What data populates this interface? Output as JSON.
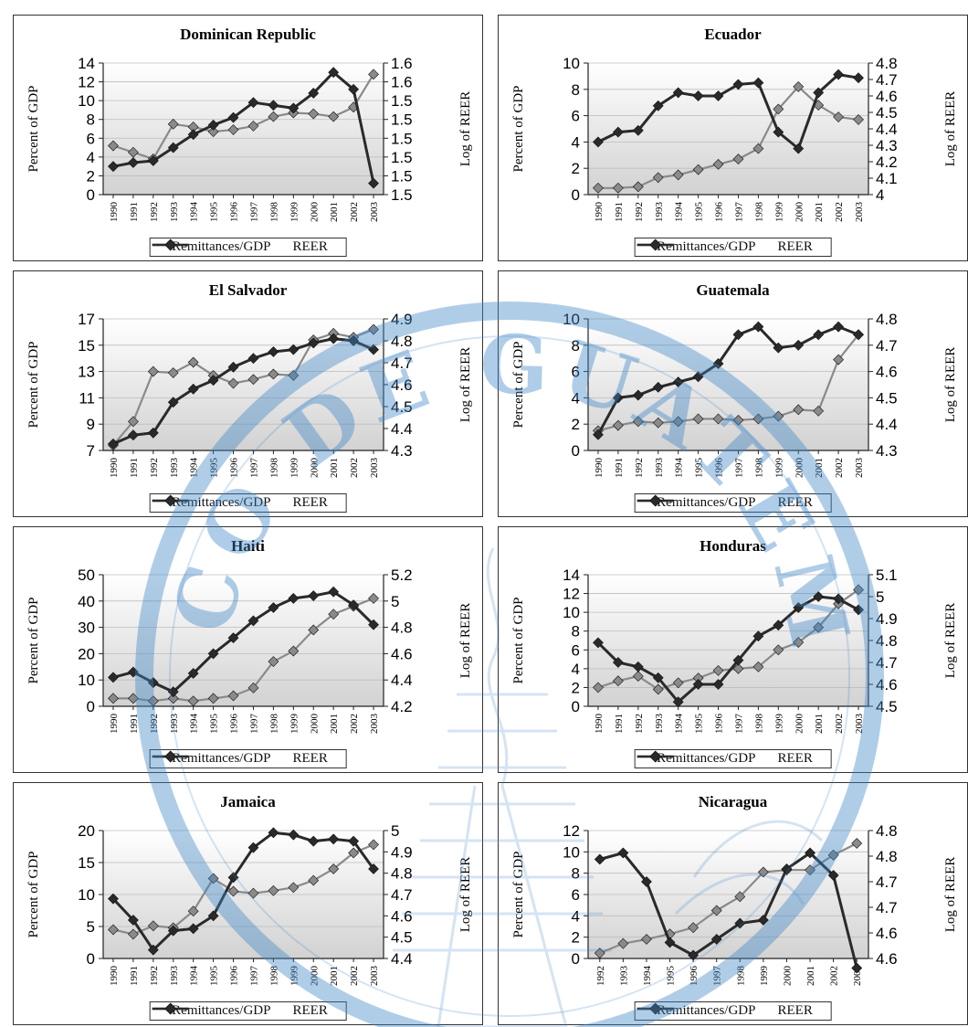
{
  "colors": {
    "remit": "#8a8a8a",
    "reer": "#2a2a2a",
    "watermark": "#3f86c6"
  },
  "watermark": {
    "text": "BANCO DE GUATEMALA"
  },
  "chart_data": [
    {
      "type": "line",
      "title": "Dominican Republic",
      "ylabel": "Percent of GDP",
      "y2label": "Log of REER",
      "x": [
        "1990",
        "1991",
        "1992",
        "1993",
        "1994",
        "1995",
        "1996",
        "1997",
        "1998",
        "1999",
        "2000",
        "2001",
        "2002",
        "2003"
      ],
      "ylim": [
        0,
        14
      ],
      "yticks": [
        "0",
        "2",
        "4",
        "6",
        "8",
        "10",
        "12",
        "14"
      ],
      "y2lim": [
        1.5,
        1.6
      ],
      "y2ticks": [
        "1.5",
        "1.5",
        "1.5",
        "1.5",
        "1.5",
        "1.5",
        "1.6",
        "1.6"
      ],
      "series": [
        {
          "name": "Remittances/GDP",
          "axis": "left",
          "values": [
            5.2,
            4.5,
            3.8,
            7.5,
            7.2,
            6.7,
            6.9,
            7.3,
            8.3,
            8.7,
            8.6,
            8.3,
            9.3,
            12.8
          ]
        },
        {
          "name": "REER",
          "axis": "right",
          "values": [
            1.5214,
            1.5243,
            1.5257,
            1.5357,
            1.5457,
            1.5529,
            1.5586,
            1.57,
            1.5679,
            1.5657,
            1.5771,
            1.5929,
            1.58,
            1.5086
          ]
        }
      ]
    },
    {
      "type": "line",
      "title": "Ecuador",
      "ylabel": "Percent of GDP",
      "y2label": "Log of REER",
      "x": [
        "1990",
        "1991",
        "1992",
        "1993",
        "1994",
        "1995",
        "1996",
        "1997",
        "1998",
        "1999",
        "2000",
        "2001",
        "2002",
        "2003"
      ],
      "ylim": [
        0,
        10
      ],
      "yticks": [
        "0",
        "2",
        "4",
        "6",
        "8",
        "10"
      ],
      "y2lim": [
        4,
        4.8
      ],
      "y2ticks": [
        "4",
        "4.1",
        "4.2",
        "4.3",
        "4.4",
        "4.5",
        "4.6",
        "4.7",
        "4.8"
      ],
      "series": [
        {
          "name": "Remittances/GDP",
          "axis": "left",
          "values": [
            0.5,
            0.5,
            0.6,
            1.3,
            1.5,
            1.9,
            2.3,
            2.7,
            3.5,
            6.5,
            8.2,
            6.8,
            5.9,
            5.7
          ]
        },
        {
          "name": "REER",
          "axis": "right",
          "values": [
            4.32,
            4.38,
            4.39,
            4.54,
            4.62,
            4.6,
            4.6,
            4.67,
            4.68,
            4.38,
            4.28,
            4.62,
            4.73,
            4.71
          ]
        }
      ]
    },
    {
      "type": "line",
      "title": "El Salvador",
      "ylabel": "Percent of GDP",
      "y2label": "Log of REER",
      "x": [
        "1990",
        "1991",
        "1992",
        "1993",
        "1994",
        "1995",
        "1996",
        "1997",
        "1998",
        "1999",
        "2000",
        "2001",
        "2002",
        "2003"
      ],
      "ylim": [
        7,
        17
      ],
      "yticks": [
        "7",
        "9",
        "11",
        "13",
        "15",
        "17"
      ],
      "y2lim": [
        4.3,
        4.9
      ],
      "y2ticks": [
        "4.3",
        "4.4",
        "4.5",
        "4.6",
        "4.7",
        "4.8",
        "4.9"
      ],
      "series": [
        {
          "name": "Remittances/GDP",
          "axis": "left",
          "values": [
            7.4,
            9.2,
            13.0,
            12.9,
            13.7,
            12.7,
            12.1,
            12.4,
            12.8,
            12.7,
            15.4,
            15.9,
            15.6,
            16.2
          ]
        },
        {
          "name": "REER",
          "axis": "right",
          "values": [
            4.33,
            4.37,
            4.38,
            4.52,
            4.58,
            4.62,
            4.68,
            4.72,
            4.75,
            4.76,
            4.79,
            4.81,
            4.8,
            4.76
          ]
        }
      ]
    },
    {
      "type": "line",
      "title": "Guatemala",
      "ylabel": "Percent of GDP",
      "y2label": "Log of REER",
      "x": [
        "1990",
        "1991",
        "1992",
        "1993",
        "1994",
        "1995",
        "1996",
        "1997",
        "1998",
        "1999",
        "2000",
        "2001",
        "2002",
        "2003"
      ],
      "ylim": [
        0,
        10
      ],
      "yticks": [
        "0",
        "2",
        "4",
        "6",
        "8",
        "10"
      ],
      "y2lim": [
        4.3,
        4.8
      ],
      "y2ticks": [
        "4.3",
        "4.4",
        "4.5",
        "4.6",
        "4.7",
        "4.8"
      ],
      "series": [
        {
          "name": "Remittances/GDP",
          "axis": "left",
          "values": [
            1.5,
            1.9,
            2.2,
            2.1,
            2.2,
            2.4,
            2.4,
            2.3,
            2.4,
            2.6,
            3.1,
            3.0,
            6.9,
            8.8
          ]
        },
        {
          "name": "REER",
          "axis": "right",
          "values": [
            4.36,
            4.5,
            4.51,
            4.54,
            4.56,
            4.58,
            4.63,
            4.74,
            4.77,
            4.69,
            4.7,
            4.74,
            4.77,
            4.74
          ]
        }
      ]
    },
    {
      "type": "line",
      "title": "Haiti",
      "ylabel": "Percent of GDP",
      "y2label": "Log of REER",
      "x": [
        "1990",
        "1991",
        "1992",
        "1993",
        "1994",
        "1995",
        "1996",
        "1997",
        "1998",
        "1999",
        "2000",
        "2001",
        "2002",
        "2003"
      ],
      "ylim": [
        0,
        50
      ],
      "yticks": [
        "0",
        "10",
        "20",
        "30",
        "40",
        "50"
      ],
      "y2lim": [
        4.2,
        5.2
      ],
      "y2ticks": [
        "4.2",
        "4.4",
        "4.6",
        "4.8",
        "5",
        "5.2"
      ],
      "series": [
        {
          "name": "Remittances/GDP",
          "axis": "left",
          "values": [
            3,
            3,
            2,
            3,
            2,
            3,
            4,
            7,
            17,
            21,
            29,
            35,
            38,
            41
          ]
        },
        {
          "name": "REER",
          "axis": "right",
          "values": [
            4.42,
            4.46,
            4.38,
            4.31,
            4.45,
            4.6,
            4.72,
            4.85,
            4.95,
            5.02,
            5.04,
            5.07,
            4.97,
            4.82
          ]
        }
      ]
    },
    {
      "type": "line",
      "title": "Honduras",
      "ylabel": "Percent of GDP",
      "y2label": "Log of REER",
      "x": [
        "1990",
        "1991",
        "1992",
        "1993",
        "1994",
        "1995",
        "1996",
        "1997",
        "1998",
        "1999",
        "2000",
        "2001",
        "2002",
        "2003"
      ],
      "ylim": [
        0,
        14
      ],
      "yticks": [
        "0",
        "2",
        "4",
        "6",
        "8",
        "10",
        "12",
        "14"
      ],
      "y2lim": [
        4.5,
        5.1
      ],
      "y2ticks": [
        "4.5",
        "4.6",
        "4.7",
        "4.8",
        "4.9",
        "5",
        "5.1"
      ],
      "series": [
        {
          "name": "Remittances/GDP",
          "axis": "left",
          "values": [
            2.0,
            2.7,
            3.2,
            1.8,
            2.5,
            3.0,
            3.8,
            4.0,
            4.2,
            6.0,
            6.8,
            8.4,
            10.9,
            12.4
          ]
        },
        {
          "name": "REER",
          "axis": "right",
          "values": [
            4.79,
            4.7,
            4.68,
            4.63,
            4.52,
            4.6,
            4.6,
            4.71,
            4.82,
            4.87,
            4.95,
            5.0,
            4.99,
            4.94
          ]
        }
      ]
    },
    {
      "type": "line",
      "title": "Jamaica",
      "ylabel": "Percent of GDP",
      "y2label": "Log of REER",
      "x": [
        "1990",
        "1991",
        "1992",
        "1993",
        "1994",
        "1995",
        "1996",
        "1997",
        "1998",
        "1999",
        "2000",
        "2001",
        "2002",
        "2003"
      ],
      "ylim": [
        0,
        20
      ],
      "yticks": [
        "0",
        "5",
        "10",
        "15",
        "20"
      ],
      "y2lim": [
        4.4,
        5
      ],
      "y2ticks": [
        "4.4",
        "4.5",
        "4.6",
        "4.7",
        "4.8",
        "4.9",
        "5"
      ],
      "series": [
        {
          "name": "Remittances/GDP",
          "axis": "left",
          "values": [
            4.5,
            3.8,
            5.1,
            4.8,
            7.4,
            12.5,
            10.5,
            10.2,
            10.6,
            11.1,
            12.2,
            14.0,
            16.5,
            17.8
          ]
        },
        {
          "name": "REER",
          "axis": "right",
          "values": [
            4.68,
            4.58,
            4.44,
            4.53,
            4.54,
            4.6,
            4.78,
            4.92,
            4.99,
            4.98,
            4.95,
            4.96,
            4.95,
            4.82
          ]
        }
      ]
    },
    {
      "type": "line",
      "title": "Nicaragua",
      "ylabel": "Percent of GDP",
      "y2label": "Log of REER",
      "x": [
        "1992",
        "1993",
        "1994",
        "1995",
        "1996",
        "1997",
        "1998",
        "1999",
        "2000",
        "2001",
        "2002",
        "2003"
      ],
      "ylim": [
        0,
        12
      ],
      "yticks": [
        "0",
        "2",
        "4",
        "6",
        "8",
        "10",
        "12"
      ],
      "y2lim": [
        4.6,
        4.8
      ],
      "y2ticks": [
        "4.6",
        "4.6",
        "4.7",
        "4.7",
        "4.8",
        "4.8"
      ],
      "series": [
        {
          "name": "Remittances/GDP",
          "axis": "left",
          "values": [
            0.5,
            1.4,
            1.8,
            2.3,
            2.9,
            4.5,
            5.8,
            8.1,
            8.3,
            8.3,
            9.7,
            10.8
          ]
        },
        {
          "name": "REER",
          "axis": "right",
          "values": [
            4.755,
            4.765,
            4.72,
            4.625,
            4.605,
            4.63,
            4.655,
            4.66,
            4.74,
            4.765,
            4.73,
            4.585
          ]
        }
      ]
    }
  ]
}
